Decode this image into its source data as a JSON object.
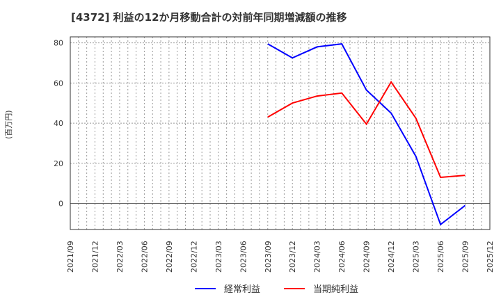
{
  "title": "[4372]  利益の12か月移動合計の対前年同期増減額の推移",
  "ylabel": "(百万円)",
  "legend": [
    {
      "label": "経常利益",
      "color": "#0000ff"
    },
    {
      "label": "当期純利益",
      "color": "#ff0000"
    }
  ],
  "chart_data": {
    "type": "line",
    "title": "[4372]  利益の12か月移動合計の対前年同期増減額の推移",
    "xlabel": "",
    "ylabel": "(百万円)",
    "ylim": [
      -13,
      83
    ],
    "yticks": [
      0,
      20,
      40,
      60,
      80
    ],
    "grid": true,
    "legend_position": "bottom",
    "categories": [
      "2021/09",
      "2021/12",
      "2022/03",
      "2022/06",
      "2022/09",
      "2022/12",
      "2023/03",
      "2023/06",
      "2023/09",
      "2023/12",
      "2024/03",
      "2024/06",
      "2024/09",
      "2024/12",
      "2025/03",
      "2025/06",
      "2025/09",
      "2025/12"
    ],
    "series": [
      {
        "name": "経常利益",
        "color": "#0000ff",
        "values": [
          null,
          null,
          null,
          null,
          null,
          null,
          null,
          null,
          79.5,
          72.5,
          78,
          79.5,
          56.5,
          45,
          23.5,
          -10.5,
          -1,
          null
        ]
      },
      {
        "name": "当期純利益",
        "color": "#ff0000",
        "values": [
          null,
          null,
          null,
          null,
          null,
          null,
          null,
          null,
          43,
          50,
          53.5,
          55,
          39.5,
          60.5,
          42.5,
          13,
          14,
          null
        ]
      }
    ]
  }
}
